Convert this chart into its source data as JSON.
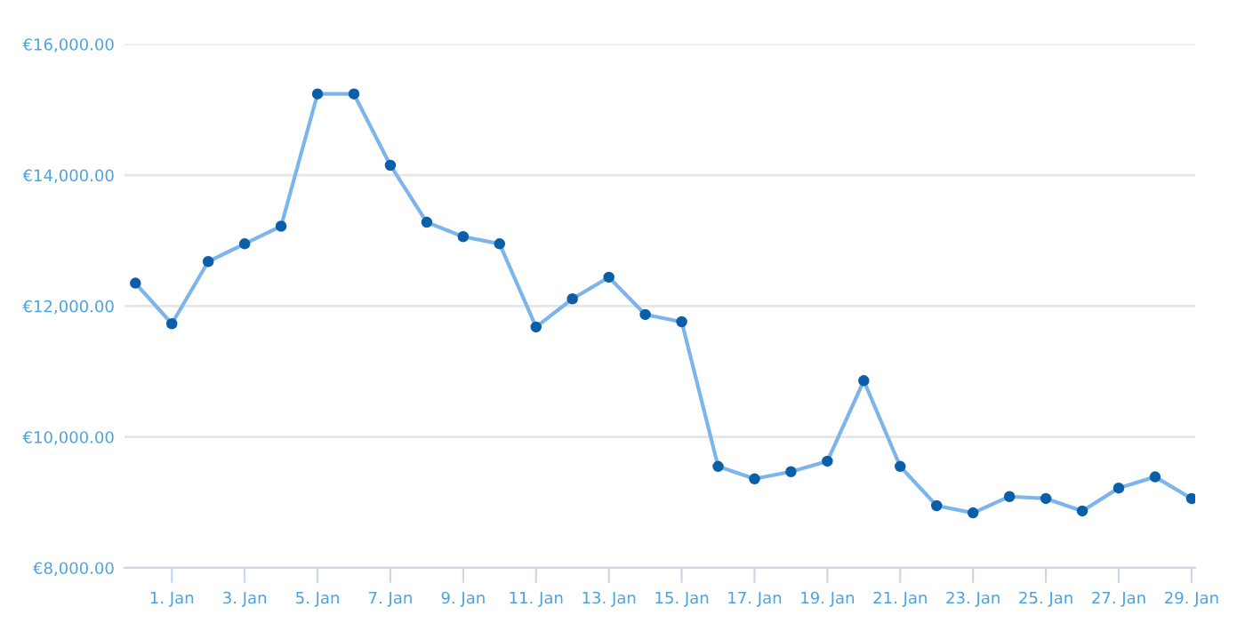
{
  "chart_data": {
    "type": "line",
    "categories": [
      null,
      "1. Jan",
      null,
      "3. Jan",
      null,
      "5. Jan",
      null,
      "7. Jan",
      null,
      "9. Jan",
      null,
      "11. Jan",
      null,
      "13. Jan",
      null,
      "15. Jan",
      null,
      "17. Jan",
      null,
      "19. Jan",
      null,
      "21. Jan",
      null,
      "23. Jan",
      null,
      "25. Jan",
      null,
      "27. Jan",
      null,
      "29. Jan"
    ],
    "series": [
      {
        "color": "#7cb5ec",
        "values": [
          12350,
          11730,
          12680,
          12950,
          13220,
          15240,
          15240,
          14150,
          13280,
          13060,
          12950,
          11680,
          12110,
          12440,
          11870,
          11760,
          9550,
          9360,
          9470,
          9630,
          10860,
          9550,
          8950,
          8840,
          9090,
          9060,
          8870,
          9220,
          9390,
          9060
        ]
      }
    ],
    "ylim": [
      8000,
      16000
    ],
    "yticks": [
      {
        "value": 8000,
        "label": "€8,000.00"
      },
      {
        "value": 10000,
        "label": "€10,000.00"
      },
      {
        "value": 12000,
        "label": "€12,000.00"
      },
      {
        "value": 14000,
        "label": "€14,000.00"
      },
      {
        "value": 16000,
        "label": "€16,000.00"
      }
    ],
    "grid": "y",
    "marker": "circle",
    "line_style": "solid",
    "legend": false
  }
}
